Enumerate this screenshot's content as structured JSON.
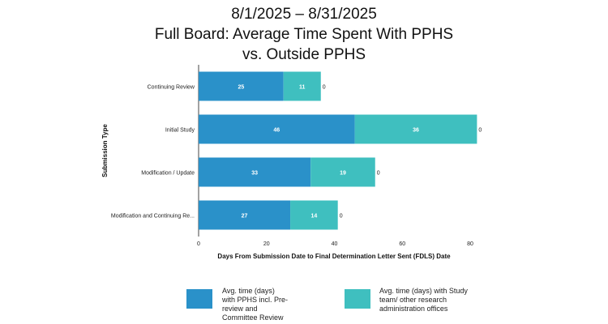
{
  "title_lines": [
    "8/1/2025 – 8/31/2025",
    "Full Board: Average Time Spent With PPHS",
    "vs. Outside PPHS"
  ],
  "chart_data": {
    "type": "bar",
    "orientation": "horizontal",
    "stacked": true,
    "categories": [
      "Continuing Review",
      "Initial Study",
      "Modification / Update",
      "Modification and Continuing Re..."
    ],
    "series": [
      {
        "name": "Avg. time (days) with PPHS incl. Pre-review and Committee Review",
        "values": [
          25,
          46,
          33,
          27
        ],
        "color": "#2a91c9"
      },
      {
        "name": "Avg. time (days) with Study team/ other research administration offices",
        "values": [
          11,
          36,
          19,
          14
        ],
        "color": "#3fbfbf"
      }
    ],
    "end_labels": [
      "0",
      "0",
      "0",
      "0"
    ],
    "xlabel": "Days From Submission Date to Final Determination Letter Sent (FDLS) Date",
    "ylabel": "Submission Type",
    "xlim": [
      0,
      85
    ],
    "xticks": [
      0,
      20,
      40,
      60,
      80
    ],
    "grid": false,
    "legend": "bottom"
  },
  "legend": {
    "item1_lines": [
      "Avg. time (days)",
      "with PPHS incl. Pre-",
      "review and",
      "Committee Review"
    ],
    "item2_lines": [
      "Avg. time (days) with Study",
      "team/ other research",
      "administration offices"
    ]
  }
}
